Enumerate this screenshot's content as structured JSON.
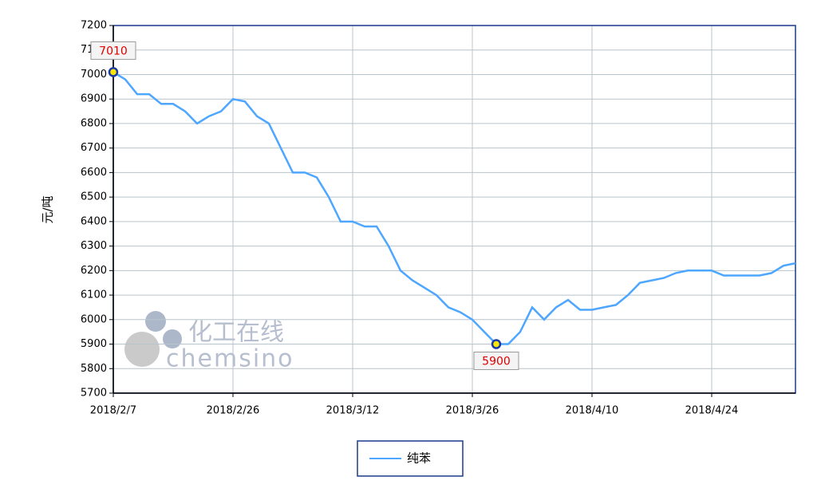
{
  "chart_data": {
    "type": "line",
    "y_label": "元/吨",
    "categories": [
      "2018/2/7",
      null,
      null,
      null,
      null,
      null,
      null,
      null,
      null,
      null,
      "2018/2/26",
      null,
      null,
      null,
      null,
      null,
      null,
      null,
      null,
      null,
      "2018/3/12",
      null,
      null,
      null,
      null,
      null,
      null,
      null,
      null,
      null,
      "2018/3/26",
      null,
      null,
      null,
      null,
      null,
      null,
      null,
      null,
      null,
      "2018/4/10",
      null,
      null,
      null,
      null,
      null,
      null,
      null,
      null,
      null,
      "2018/4/24",
      null,
      null,
      null,
      null,
      null,
      null,
      null
    ],
    "series": [
      {
        "name": "纯苯",
        "color": "#4da6ff",
        "values": [
          7010,
          6980,
          6920,
          6920,
          6880,
          6880,
          6850,
          6800,
          6830,
          6850,
          6900,
          6890,
          6830,
          6800,
          6700,
          6600,
          6600,
          6580,
          6500,
          6400,
          6400,
          6380,
          6380,
          6300,
          6200,
          6160,
          6130,
          6100,
          6050,
          6030,
          6000,
          5950,
          5900,
          5900,
          5950,
          6050,
          6000,
          6050,
          6080,
          6040,
          6040,
          6050,
          6060,
          6100,
          6150,
          6160,
          6170,
          6190,
          6200,
          6200,
          6200,
          6180,
          6180,
          6180,
          6180,
          6190,
          6220,
          6230
        ]
      }
    ],
    "annotations": [
      "7010",
      "5900"
    ],
    "ylim": [
      5700,
      7200
    ],
    "yticks": [
      5700,
      5800,
      5900,
      6000,
      6100,
      6200,
      6300,
      6400,
      6500,
      6600,
      6700,
      6800,
      6900,
      7000,
      7100,
      7200
    ],
    "grid": true,
    "watermark": [
      "化工在线",
      "chemsino"
    ]
  }
}
